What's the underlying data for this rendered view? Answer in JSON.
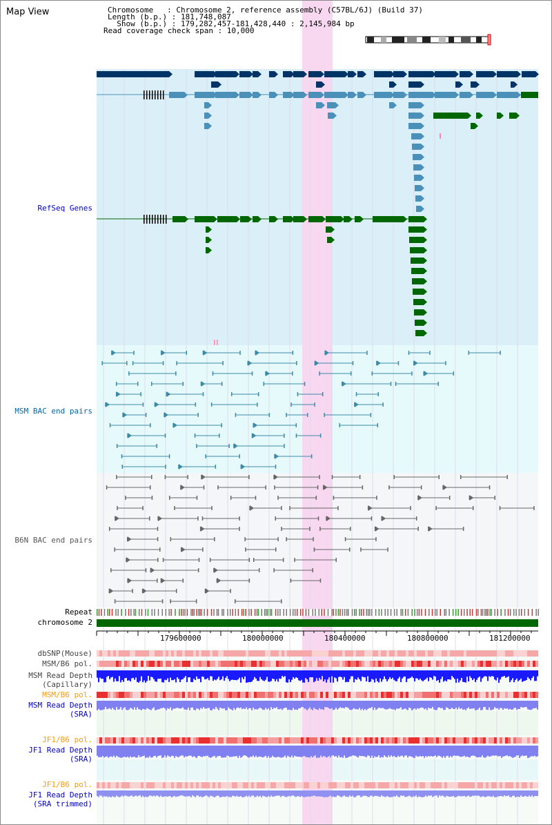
{
  "header": {
    "title": "Map View",
    "chromosome_line": "Chromosome   : Chromosome 2, reference assembly (C57BL/6J) (Build 37)",
    "length_line": "Length (b.p.) : 181,748,087",
    "show_line": "  Show (b.p.) : 179,282,457-181,428,440 : 2,145,984 bp",
    "coverage_line": "Read coverage check span : 10,000"
  },
  "tracks": {
    "refseq": "RefSeq Genes",
    "msm_bac": "MSM BAC end pairs",
    "b6n_bac": "B6N BAC end pairs",
    "repeat": "Repeat",
    "chromosome": "chromosome 2",
    "dbsnp": "dbSNP(Mouse)",
    "msm_b6_pol_1": "MSM/B6 pol.",
    "msm_read_cap_1": "MSM Read Depth",
    "msm_read_cap_2": "(Capillary)",
    "msm_b6_pol_2": "MSM/B6 pol.",
    "msm_read_sra_1": "MSM Read Depth",
    "msm_read_sra_2": "(SRA)",
    "jf1_b6_pol_1": "JF1/B6 pol.",
    "jf1_read_sra_1": "JF1 Read Depth",
    "jf1_read_sra_2": "(SRA)",
    "jf1_b6_pol_2": "JF1/B6 pol.",
    "jf1_read_trim_1": "JF1 Read Depth",
    "jf1_read_trim_2": "(SRA trimmed)"
  },
  "axis": {
    "ticks": [
      "179600000",
      "180000000",
      "180400000",
      "180800000",
      "181200000"
    ]
  },
  "colors": {
    "refseq_bg": "#dbeff8",
    "msm_bg": "#e6f9fb",
    "b6n_bg": "#f4f6f8",
    "highlight": "#f8d8f0",
    "gene_dark": "#003366",
    "gene_mid": "#4a90b8",
    "gene_green": "#006600",
    "msm_line": "#3a8aa8",
    "b6n_line": "#666666",
    "label_blue": "#0000cc",
    "label_orange": "#ff9900",
    "label_gray": "#444444"
  }
}
